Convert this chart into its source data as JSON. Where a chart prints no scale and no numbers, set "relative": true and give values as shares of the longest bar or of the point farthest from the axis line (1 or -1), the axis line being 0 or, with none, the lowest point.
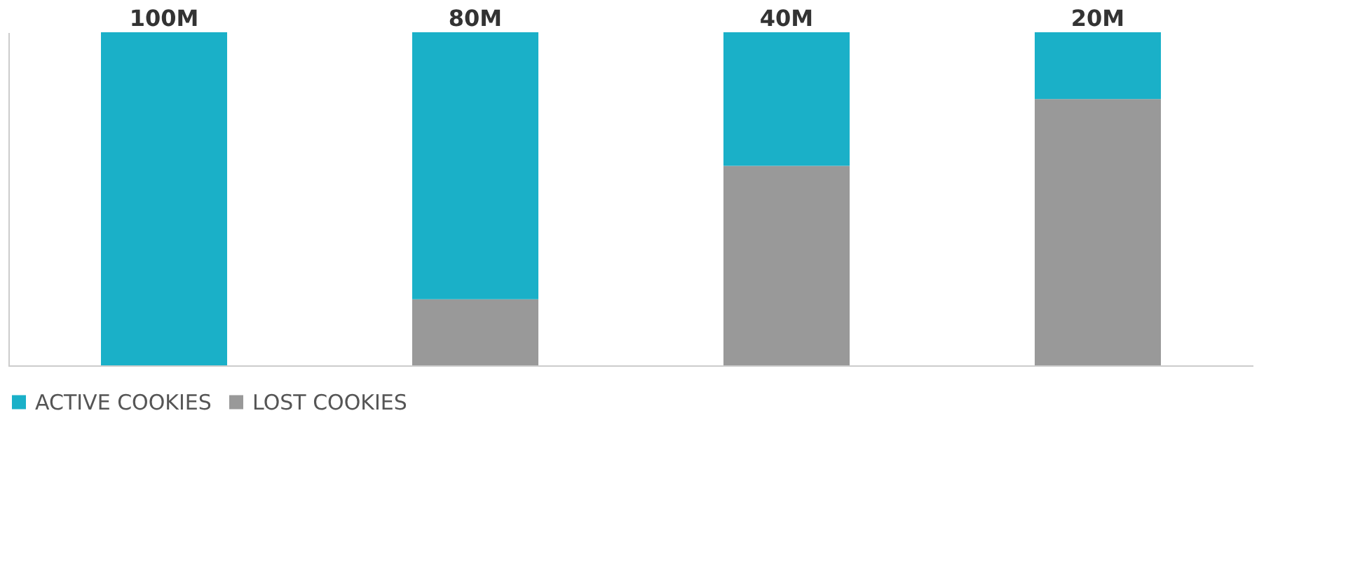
{
  "chart_data": {
    "type": "bar",
    "stacked": true,
    "relative": true,
    "categories": [
      "100M",
      "80M",
      "40M",
      "20M"
    ],
    "series": [
      {
        "name": "LOST COOKIES",
        "color": "#999999",
        "values": [
          0,
          0.2,
          0.6,
          0.8
        ]
      },
      {
        "name": "ACTIVE COOKIES",
        "color": "#1ab0c8",
        "values": [
          1,
          0.8,
          0.4,
          0.2
        ]
      }
    ],
    "legend": "bottom",
    "grid": false
  }
}
